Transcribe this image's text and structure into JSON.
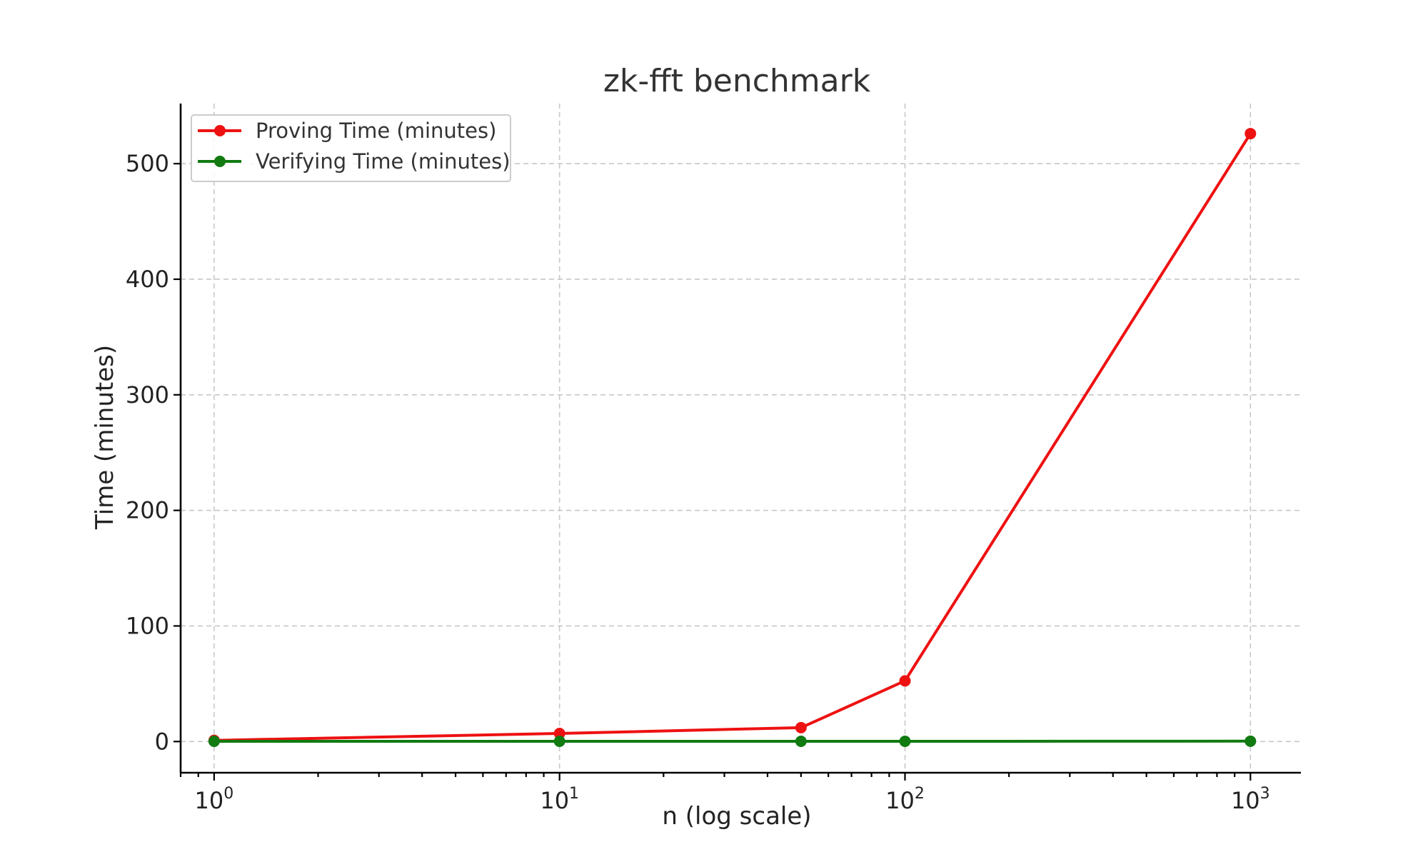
{
  "chart_data": {
    "type": "line",
    "title": "zk-fft benchmark",
    "xlabel": "n (log scale)",
    "ylabel": "Time (minutes)",
    "x_scale": "log",
    "xlim": [
      0.8,
      1400
    ],
    "ylim": [
      -27,
      552
    ],
    "x_ticks": [
      {
        "base": "10",
        "exp": "0",
        "value": 1
      },
      {
        "base": "10",
        "exp": "1",
        "value": 10
      },
      {
        "base": "10",
        "exp": "2",
        "value": 100
      },
      {
        "base": "10",
        "exp": "3",
        "value": 1000
      }
    ],
    "y_ticks": [
      0,
      100,
      200,
      300,
      400,
      500
    ],
    "grid": true,
    "legend_position": "top-left",
    "x": [
      1,
      10,
      50,
      100,
      1000
    ],
    "series": [
      {
        "name": "Proving Time (minutes)",
        "color": "#ee1111",
        "values": [
          1,
          7,
          12,
          52.5,
          526
        ]
      },
      {
        "name": "Verifying Time (minutes)",
        "color": "#117a11",
        "values": [
          0.2,
          0.2,
          0.2,
          0.2,
          0.3
        ]
      }
    ]
  }
}
